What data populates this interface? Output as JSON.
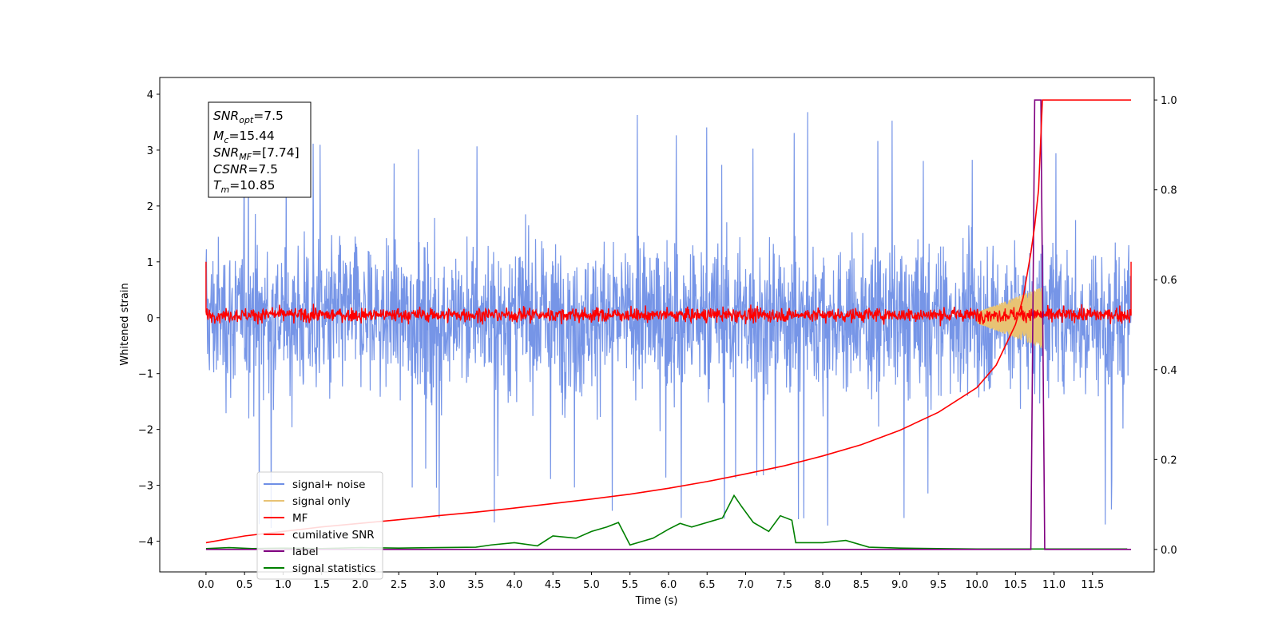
{
  "chart_data": {
    "type": "line",
    "xlabel": "Time (s)",
    "ylabel": "Whitened strain",
    "xlim": [
      -0.6,
      12.3
    ],
    "ylim": [
      -4.55,
      4.3
    ],
    "y2lim": [
      -0.05,
      1.05
    ],
    "x_ticks": [
      "0.0",
      "0.5",
      "1.0",
      "1.5",
      "2.0",
      "2.5",
      "3.0",
      "3.5",
      "4.0",
      "4.5",
      "5.0",
      "5.5",
      "6.0",
      "6.5",
      "7.0",
      "7.5",
      "8.0",
      "8.5",
      "9.0",
      "9.5",
      "10.0",
      "10.5",
      "11.0",
      "11.5"
    ],
    "y_ticks": [
      "4",
      "3",
      "2",
      "1",
      "0",
      "−1",
      "−2",
      "−3",
      "−4"
    ],
    "y2_ticks": [
      "1.0",
      "0.8",
      "0.6",
      "0.4",
      "0.2",
      "0.0"
    ],
    "grid": false,
    "legend_position": "lower-left",
    "info_box": {
      "snr_opt": {
        "var": "SNR",
        "sub": "opt",
        "value": "=7.5"
      },
      "mc": {
        "var": "M",
        "sub": "c",
        "value": "=15.44"
      },
      "snr_mf": {
        "var": "SNR",
        "sub": "MF",
        "value": "=[7.74]"
      },
      "csnr": {
        "var": "CSNR",
        "sub": "",
        "value": "=7.5"
      },
      "tm": {
        "var": "T",
        "sub": "m",
        "value": "=10.85"
      }
    },
    "series": [
      {
        "name": "signal+ noise",
        "color": "#6f8fe6",
        "axis": "left",
        "x_range": [
          0,
          12.0
        ],
        "envelope_upper": 2.3,
        "envelope_lower": -2.3,
        "peak_max": 3.85,
        "peak_min": -4.1
      },
      {
        "name": "signal only",
        "color": "#e8c374",
        "axis": "left",
        "x_range": [
          10.0,
          10.85
        ],
        "amplitude_start": 0.1,
        "amplitude_end": 0.55
      },
      {
        "name": "MF",
        "color": "#ff0000",
        "axis": "left",
        "x_range": [
          0,
          12.0
        ],
        "envelope_upper": 0.3,
        "envelope_lower": -0.2,
        "edge_value": 1.0
      },
      {
        "name": "cumilative SNR",
        "color": "#ff0000",
        "axis": "right",
        "x": [
          0,
          0.5,
          1,
          1.5,
          2,
          2.5,
          3,
          3.5,
          4,
          4.5,
          5,
          5.5,
          6,
          6.5,
          7,
          7.5,
          8,
          8.5,
          9,
          9.5,
          10,
          10.25,
          10.5,
          10.6,
          10.7,
          10.75,
          10.8,
          10.85,
          11,
          11.5,
          12
        ],
        "y": [
          0.015,
          0.03,
          0.04,
          0.05,
          0.058,
          0.066,
          0.075,
          0.083,
          0.092,
          0.102,
          0.112,
          0.123,
          0.136,
          0.151,
          0.168,
          0.186,
          0.208,
          0.233,
          0.265,
          0.305,
          0.36,
          0.41,
          0.5,
          0.56,
          0.66,
          0.72,
          0.8,
          1.0,
          1.0,
          1.0,
          1.0
        ]
      },
      {
        "name": "label",
        "color": "#800080",
        "axis": "right",
        "x": [
          0,
          10.7,
          10.75,
          10.83,
          10.88,
          12
        ],
        "y": [
          0,
          0,
          1.0,
          1.0,
          0,
          0
        ]
      },
      {
        "name": "signal statistics",
        "color": "#008000",
        "axis": "right",
        "x": [
          0,
          0.3,
          0.6,
          1.0,
          1.5,
          2.0,
          2.5,
          3.0,
          3.5,
          3.7,
          4.0,
          4.3,
          4.5,
          4.8,
          5.0,
          5.2,
          5.35,
          5.5,
          5.8,
          6.0,
          6.15,
          6.3,
          6.5,
          6.7,
          6.85,
          6.95,
          7.1,
          7.3,
          7.45,
          7.6,
          7.65,
          8.0,
          8.3,
          8.6,
          9.0,
          9.5,
          10.0,
          10.5,
          11.0,
          11.5,
          11.95
        ],
        "y": [
          0.002,
          0.004,
          0.002,
          0.003,
          0.002,
          0.004,
          0.003,
          0.004,
          0.005,
          0.01,
          0.015,
          0.008,
          0.03,
          0.025,
          0.04,
          0.05,
          0.06,
          0.01,
          0.025,
          0.045,
          0.058,
          0.05,
          0.06,
          0.07,
          0.12,
          0.095,
          0.06,
          0.04,
          0.075,
          0.065,
          0.015,
          0.015,
          0.02,
          0.005,
          0.003,
          0.002,
          0.001,
          0.001,
          0.001,
          0.001,
          0.001
        ]
      }
    ]
  }
}
